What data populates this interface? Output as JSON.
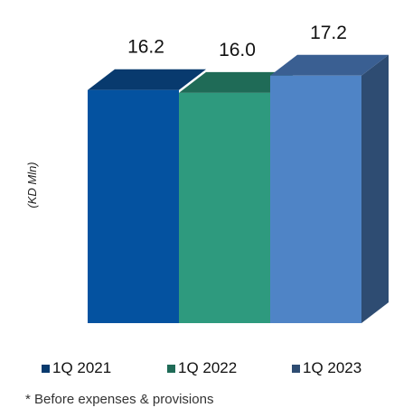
{
  "chart_data": {
    "type": "bar",
    "categories": [
      "1Q 2021",
      "1Q 2022",
      "1Q 2023"
    ],
    "values": [
      16.2,
      16.0,
      17.2
    ],
    "value_labels": [
      "16.2",
      "16.0",
      "17.2"
    ],
    "ylabel": "(KD Mln)",
    "ylim": [
      0,
      18
    ],
    "grid": false,
    "legend_position": "bottom",
    "style": "3d",
    "colors": {
      "front": [
        "#0452a0",
        "#2e9a7e",
        "#4f84c6"
      ],
      "top": [
        "#083a6e",
        "#1f6b57",
        "#3a5f92"
      ],
      "side": [
        "#2e4c72",
        "#2e4c72",
        "#2e4c72"
      ],
      "legend": [
        "#083a6e",
        "#1f6b57",
        "#2e4c72"
      ]
    }
  },
  "legend": [
    {
      "label": "1Q 2021"
    },
    {
      "label": "1Q 2022"
    },
    {
      "label": "1Q 2023"
    }
  ],
  "footnote": "* Before expenses & provisions"
}
